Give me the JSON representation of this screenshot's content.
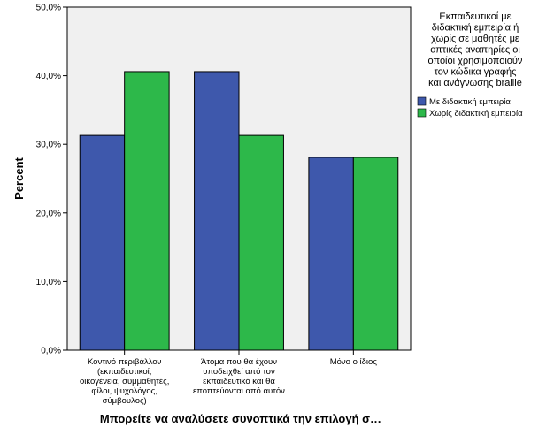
{
  "chart_data": {
    "type": "bar",
    "title": "",
    "xlabel": "Μπορείτε να αναλύσετε συνοπτικά την επιλογή σ…",
    "ylabel": "Percent",
    "ylim": [
      0,
      50
    ],
    "yticks": [
      "0,0%",
      "10,0%",
      "20,0%",
      "30,0%",
      "40,0%",
      "50,0%"
    ],
    "y_tick_values": [
      0,
      10,
      20,
      30,
      40,
      50
    ],
    "categories": [
      [
        "Κοντινό περιβάλλον",
        "(εκπαιδευτικοί,",
        "οικογένεια, συμμαθητές,",
        "φίλοι, ψυχολόγος,",
        "σύμβουλος)"
      ],
      [
        "Άτομα που θα έχουν",
        "υποδειχθεί από τον",
        "εκπαιδευτικό και θα",
        "εποπτεύονται από αυτόν"
      ],
      [
        "Μόνο ο ίδιος"
      ]
    ],
    "legend": {
      "title": [
        "Εκπαιδευτικοί με",
        "διδακτική εμπειρία ή",
        "χωρίς σε μαθητές με",
        "οπτικές αναπηρίες οι",
        "οποίοι χρησιμοποιούν",
        "τον κώδικα γραφής",
        "και ανάγνωσης braille"
      ],
      "placement": "right"
    },
    "series": [
      {
        "name": "Με διδακτική εμπειρία",
        "color": "#3e58ac",
        "values": [
          31.3,
          40.6,
          28.1
        ]
      },
      {
        "name": "Χωρίς διδακτική εμπειρία",
        "color": "#2db84a",
        "values": [
          40.6,
          31.3,
          28.1
        ]
      }
    ],
    "grid": false,
    "plot_background": "#f0f0f0"
  }
}
